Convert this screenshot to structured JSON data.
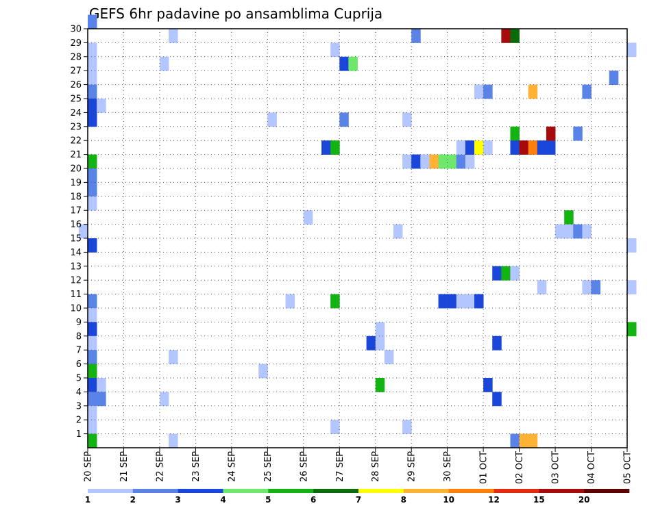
{
  "chart_data": {
    "type": "heatmap",
    "title": "GEFS 6hr padavine po ansamblima Cuprija",
    "x_ticks": [
      "20 SEP",
      "21 SEP",
      "22 SEP",
      "23 SEP",
      "24 SEP",
      "25 SEP",
      "26 SEP",
      "27 SEP",
      "28 SEP",
      "29 SEP",
      "30 SEP",
      "01 OCT",
      "02 OCT",
      "03 OCT",
      "04 OCT",
      "05 OCT"
    ],
    "y_ticks": [
      "1",
      "2",
      "3",
      "4",
      "5",
      "6",
      "7",
      "8",
      "9",
      "10",
      "11",
      "12",
      "13",
      "14",
      "15",
      "16",
      "17",
      "18",
      "19",
      "20",
      "21",
      "22",
      "23",
      "24",
      "25",
      "26",
      "27",
      "28",
      "29",
      "30"
    ],
    "x_steps": 61,
    "y_range": [
      0,
      30
    ],
    "grid": true,
    "legend": {
      "labels": [
        "1",
        "2",
        "3",
        "4",
        "5",
        "6",
        "7",
        "8",
        "10",
        "12",
        "15",
        "20"
      ],
      "colors": [
        "#b3c6ff",
        "#5a83e8",
        "#1a47d9",
        "#6de86d",
        "#12b312",
        "#0a6b0a",
        "#ffff00",
        "#ffb233",
        "#ff7f0a",
        "#e52b0f",
        "#a60a0a",
        "#5c0000"
      ]
    },
    "cells": [
      {
        "t": 0,
        "m": 30,
        "v": 2
      },
      {
        "t": 0,
        "m": 28,
        "v": 1
      },
      {
        "t": 0,
        "m": 27,
        "v": 1
      },
      {
        "t": 0,
        "m": 26,
        "v": 1
      },
      {
        "t": 0,
        "m": 25,
        "v": 2
      },
      {
        "t": 0,
        "m": 24,
        "v": 3
      },
      {
        "t": 1,
        "m": 24,
        "v": 1
      },
      {
        "t": 0,
        "m": 23,
        "v": 3
      },
      {
        "t": 0,
        "m": 20,
        "v": 5
      },
      {
        "t": 0,
        "m": 19,
        "v": 2
      },
      {
        "t": 0,
        "m": 18,
        "v": 2
      },
      {
        "t": 0,
        "m": 17,
        "v": 1
      },
      {
        "t": -1,
        "m": 15,
        "v": 1
      },
      {
        "t": 0,
        "m": 14,
        "v": 3
      },
      {
        "t": 0,
        "m": 10,
        "v": 2
      },
      {
        "t": 0,
        "m": 9,
        "v": 1
      },
      {
        "t": 0,
        "m": 8,
        "v": 3
      },
      {
        "t": 0,
        "m": 7,
        "v": 1
      },
      {
        "t": 0,
        "m": 6,
        "v": 2
      },
      {
        "t": 0,
        "m": 5,
        "v": 5
      },
      {
        "t": 0,
        "m": 4,
        "v": 3
      },
      {
        "t": 1,
        "m": 4,
        "v": 1
      },
      {
        "t": 0,
        "m": 3,
        "v": 2
      },
      {
        "t": 1,
        "m": 3,
        "v": 2
      },
      {
        "t": 0,
        "m": 2,
        "v": 1
      },
      {
        "t": 0,
        "m": 1,
        "v": 1
      },
      {
        "t": 0,
        "m": 0,
        "v": 5
      },
      {
        "t": 9,
        "m": 29,
        "v": 1
      },
      {
        "t": 8,
        "m": 27,
        "v": 1
      },
      {
        "t": 9,
        "m": 6,
        "v": 1
      },
      {
        "t": 8,
        "m": 3,
        "v": 1
      },
      {
        "t": 9,
        "m": 0,
        "v": 1
      },
      {
        "t": 20,
        "m": 23,
        "v": 1
      },
      {
        "t": 19,
        "m": 5,
        "v": 1
      },
      {
        "t": 22,
        "m": 10,
        "v": 1
      },
      {
        "t": 24,
        "m": 16,
        "v": 1
      },
      {
        "t": 26,
        "m": 21,
        "v": 3
      },
      {
        "t": 27,
        "m": 21,
        "v": 5
      },
      {
        "t": 27,
        "m": 28,
        "v": 1
      },
      {
        "t": 28,
        "m": 27,
        "v": 3
      },
      {
        "t": 29,
        "m": 27,
        "v": 4
      },
      {
        "t": 28,
        "m": 23,
        "v": 2
      },
      {
        "t": 27,
        "m": 10,
        "v": 5
      },
      {
        "t": 27,
        "m": 1,
        "v": 1
      },
      {
        "t": 31,
        "m": 7,
        "v": 3
      },
      {
        "t": 32,
        "m": 8,
        "v": 1
      },
      {
        "t": 32,
        "m": 7,
        "v": 1
      },
      {
        "t": 32,
        "m": 4,
        "v": 5
      },
      {
        "t": 33,
        "m": 6,
        "v": 1
      },
      {
        "t": 34,
        "m": 15,
        "v": 1
      },
      {
        "t": 35,
        "m": 20,
        "v": 1
      },
      {
        "t": 35,
        "m": 23,
        "v": 1
      },
      {
        "t": 35,
        "m": 1,
        "v": 1
      },
      {
        "t": 36,
        "m": 29,
        "v": 2
      },
      {
        "t": 36,
        "m": 20,
        "v": 3
      },
      {
        "t": 37,
        "m": 20,
        "v": 1
      },
      {
        "t": 38,
        "m": 20,
        "v": 8
      },
      {
        "t": 39,
        "m": 20,
        "v": 4
      },
      {
        "t": 40,
        "m": 20,
        "v": 4
      },
      {
        "t": 41,
        "m": 20,
        "v": 2
      },
      {
        "t": 42,
        "m": 20,
        "v": 1
      },
      {
        "t": 39,
        "m": 10,
        "v": 3
      },
      {
        "t": 40,
        "m": 10,
        "v": 3
      },
      {
        "t": 41,
        "m": 10,
        "v": 1
      },
      {
        "t": 42,
        "m": 10,
        "v": 1
      },
      {
        "t": 43,
        "m": 10,
        "v": 3
      },
      {
        "t": 41,
        "m": 21,
        "v": 1
      },
      {
        "t": 42,
        "m": 21,
        "v": 3
      },
      {
        "t": 43,
        "m": 21,
        "v": 7
      },
      {
        "t": 44,
        "m": 21,
        "v": 1
      },
      {
        "t": 43,
        "m": 25,
        "v": 1
      },
      {
        "t": 44,
        "m": 25,
        "v": 2
      },
      {
        "t": 44,
        "m": 4,
        "v": 3
      },
      {
        "t": 45,
        "m": 3,
        "v": 3
      },
      {
        "t": 45,
        "m": 7,
        "v": 3
      },
      {
        "t": 45,
        "m": 12,
        "v": 3
      },
      {
        "t": 46,
        "m": 12,
        "v": 5
      },
      {
        "t": 47,
        "m": 12,
        "v": 1
      },
      {
        "t": 46,
        "m": 29,
        "v": 15
      },
      {
        "t": 47,
        "m": 29,
        "v": 6
      },
      {
        "t": 47,
        "m": 22,
        "v": 5
      },
      {
        "t": 47,
        "m": 21,
        "v": 3
      },
      {
        "t": 48,
        "m": 21,
        "v": 15
      },
      {
        "t": 49,
        "m": 21,
        "v": 10
      },
      {
        "t": 50,
        "m": 21,
        "v": 3
      },
      {
        "t": 51,
        "m": 21,
        "v": 3
      },
      {
        "t": 47,
        "m": 0,
        "v": 2
      },
      {
        "t": 48,
        "m": 0,
        "v": 8
      },
      {
        "t": 49,
        "m": 0,
        "v": 8
      },
      {
        "t": 49,
        "m": 25,
        "v": 8
      },
      {
        "t": 50,
        "m": 11,
        "v": 1
      },
      {
        "t": 51,
        "m": 22,
        "v": 15
      },
      {
        "t": 53,
        "m": 16,
        "v": 5
      },
      {
        "t": 52,
        "m": 15,
        "v": 1
      },
      {
        "t": 53,
        "m": 15,
        "v": 1
      },
      {
        "t": 54,
        "m": 15,
        "v": 2
      },
      {
        "t": 55,
        "m": 15,
        "v": 1
      },
      {
        "t": 54,
        "m": 22,
        "v": 2
      },
      {
        "t": 55,
        "m": 25,
        "v": 2
      },
      {
        "t": 55,
        "m": 11,
        "v": 1
      },
      {
        "t": 56,
        "m": 11,
        "v": 2
      },
      {
        "t": 58,
        "m": 26,
        "v": 2
      },
      {
        "t": 60,
        "m": 28,
        "v": 1
      },
      {
        "t": 60,
        "m": 14,
        "v": 1
      },
      {
        "t": 60,
        "m": 11,
        "v": 1
      },
      {
        "t": 60,
        "m": 8,
        "v": 5
      }
    ]
  }
}
